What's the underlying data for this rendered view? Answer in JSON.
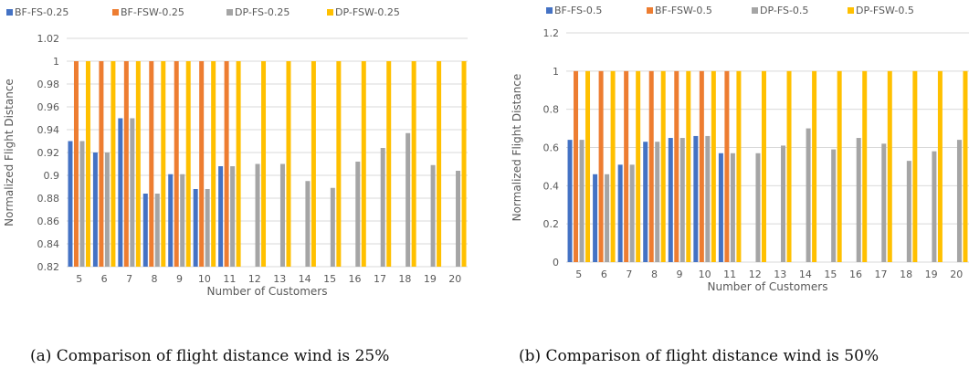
{
  "colors": {
    "bf_fs": "#4472C4",
    "bf_fsw": "#ED7D31",
    "dp_fs": "#A5A5A5",
    "dp_fsw": "#FFC000",
    "grid": "#D9D9D9",
    "text": "#595959"
  },
  "chart_data": [
    {
      "type": "bar",
      "caption": "(a) Comparison of flight distance wind is 25%",
      "xlabel": "Number of Customers",
      "ylabel": "Normalized Flight Distance",
      "ylim": [
        0.82,
        1.02
      ],
      "yticks": [
        "0.82",
        "0.84",
        "0.86",
        "0.88",
        "0.9",
        "0.92",
        "0.94",
        "0.96",
        "0.98",
        "1",
        "1.02"
      ],
      "grid": true,
      "legend_position": "top",
      "categories": [
        "5",
        "6",
        "7",
        "8",
        "9",
        "10",
        "11",
        "12",
        "13",
        "14",
        "15",
        "16",
        "17",
        "18",
        "19",
        "20"
      ],
      "series": [
        {
          "name": "BF-FS-0.25",
          "color_key": "bf_fs",
          "values": [
            0.93,
            0.92,
            0.95,
            0.884,
            0.901,
            0.888,
            0.908,
            null,
            null,
            null,
            null,
            null,
            null,
            null,
            null,
            null
          ]
        },
        {
          "name": "BF-FSW-0.25",
          "color_key": "bf_fsw",
          "values": [
            1,
            1,
            1,
            1,
            1,
            1,
            1,
            null,
            null,
            null,
            null,
            null,
            null,
            null,
            null,
            null
          ]
        },
        {
          "name": "DP-FS-0.25",
          "color_key": "dp_fs",
          "values": [
            0.93,
            0.92,
            0.95,
            0.884,
            0.901,
            0.888,
            0.908,
            0.91,
            0.91,
            0.895,
            0.889,
            0.912,
            0.924,
            0.937,
            0.909,
            0.904
          ]
        },
        {
          "name": "DP-FSW-0.25",
          "color_key": "dp_fsw",
          "values": [
            1,
            1,
            1,
            1,
            1,
            1,
            1,
            1,
            1,
            1,
            1,
            1,
            1,
            1,
            1,
            1
          ]
        }
      ]
    },
    {
      "type": "bar",
      "caption": "(b) Comparison of flight distance wind is 50%",
      "xlabel": "Number of Customers",
      "ylabel": "Normalized Flight Distance",
      "ylim": [
        0,
        1.2
      ],
      "yticks": [
        "0",
        "0.2",
        "0.4",
        "0.6",
        "0.8",
        "1",
        "1.2"
      ],
      "grid": true,
      "legend_position": "top",
      "categories": [
        "5",
        "6",
        "7",
        "8",
        "9",
        "10",
        "11",
        "12",
        "13",
        "14",
        "15",
        "16",
        "17",
        "18",
        "19",
        "20"
      ],
      "series": [
        {
          "name": "BF-FS-0.5",
          "color_key": "bf_fs",
          "values": [
            0.64,
            0.46,
            0.51,
            0.63,
            0.65,
            0.66,
            0.57,
            null,
            null,
            null,
            null,
            null,
            null,
            null,
            null,
            null
          ]
        },
        {
          "name": "BF-FSW-0.5",
          "color_key": "bf_fsw",
          "values": [
            1,
            1,
            1,
            1,
            1,
            1,
            1,
            null,
            null,
            null,
            null,
            null,
            null,
            null,
            null,
            null
          ]
        },
        {
          "name": "DP-FS-0.5",
          "color_key": "dp_fs",
          "values": [
            0.64,
            0.46,
            0.51,
            0.63,
            0.65,
            0.66,
            0.57,
            0.57,
            0.61,
            0.7,
            0.59,
            0.65,
            0.62,
            0.53,
            0.58,
            0.64
          ]
        },
        {
          "name": "DP-FSW-0.5",
          "color_key": "dp_fsw",
          "values": [
            1,
            1,
            1,
            1,
            1,
            1,
            1,
            1,
            1,
            1,
            1,
            1,
            1,
            1,
            1,
            1
          ]
        }
      ]
    }
  ]
}
